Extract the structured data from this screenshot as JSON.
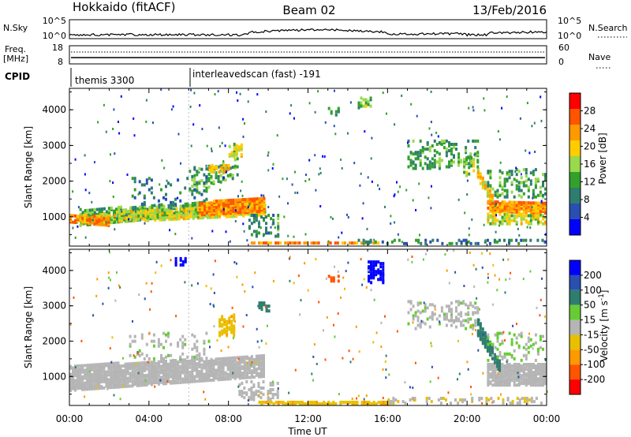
{
  "header": {
    "station": "Hokkaido (fitACF)",
    "beam": "Beam 02",
    "date": "13/Feb/2016"
  },
  "strip_labels": {
    "nsky": "N.Sky",
    "nsky_ticks": [
      "10^5",
      "10^0"
    ],
    "nsearch": "N.Search",
    "nsearch_ticks": [
      "10^5",
      "10^0"
    ],
    "freq_line1": "Freq.",
    "freq_line2": "[MHz]",
    "freq_ticks": [
      "18",
      "8"
    ],
    "nave": "Nave",
    "nave_ticks": [
      "60",
      "0"
    ],
    "cpid": "CPID",
    "cpid_entries": [
      {
        "time_h": 0.1,
        "label": "themis 3300"
      },
      {
        "time_h": 6.0,
        "label": "interleavedscan (fast) -191"
      }
    ]
  },
  "colors": {
    "power": [
      "#0000ff",
      "#2a4fb0",
      "#2e7d6e",
      "#33a02c",
      "#99d94c",
      "#ffcc00",
      "#ff9900",
      "#ff5500",
      "#ff0000"
    ],
    "velocity": [
      "#0000ff",
      "#2a4fb0",
      "#2e7d6e",
      "#66cc33",
      "#b5b5b5",
      "#e8c000",
      "#ff9900",
      "#ff5500",
      "#ff0000"
    ]
  },
  "chart_data": [
    {
      "type": "heatmap",
      "name": "power",
      "ylabel": "Slant Range [km]",
      "xlim": [
        0,
        24
      ],
      "ylim": [
        180,
        4600
      ],
      "yticks": [
        1000,
        2000,
        3000,
        4000
      ],
      "colorbar_label": "Power [dB]",
      "colorbar_ticks": [
        4,
        8,
        12,
        16,
        20,
        24,
        28
      ],
      "colorbar_range": [
        0,
        32
      ],
      "regions": [
        {
          "x": [
            0.5,
            9.8
          ],
          "y0": [
            800,
            1300
          ],
          "y1": [
            1250,
            1550
          ],
          "value": 14,
          "density": 0.75
        },
        {
          "x": [
            0.3,
            9.8
          ],
          "y0": [
            850,
            1100
          ],
          "y1": [
            1100,
            1450
          ],
          "value": 20,
          "density": 0.6
        },
        {
          "x": [
            6.5,
            9.8
          ],
          "y0": [
            1100,
            1200
          ],
          "y1": [
            1450,
            1600
          ],
          "value": 27,
          "density": 0.85
        },
        {
          "x": [
            0,
            2.0
          ],
          "y0": [
            900,
            800
          ],
          "y1": [
            1100,
            1050
          ],
          "value": 26,
          "density": 0.7
        },
        {
          "x": [
            9.0,
            15.5
          ],
          "y0": [
            220,
            220
          ],
          "y1": [
            330,
            330
          ],
          "value": 26,
          "density": 0.7
        },
        {
          "x": [
            20.5,
            21.3
          ],
          "y0": [
            2100,
            1300
          ],
          "y1": [
            2400,
            1600
          ],
          "value": 22,
          "density": 0.85
        },
        {
          "x": [
            21.0,
            24
          ],
          "y0": [
            1200,
            1150
          ],
          "y1": [
            1500,
            1450
          ],
          "value": 26,
          "density": 0.85
        },
        {
          "x": [
            21.0,
            24
          ],
          "y0": [
            850,
            850
          ],
          "y1": [
            1150,
            1100
          ],
          "value": 20,
          "density": 0.6
        },
        {
          "x": [
            6.0,
            8.5
          ],
          "y0": [
            1600,
            2200
          ],
          "y1": [
            2400,
            2700
          ],
          "value": 14,
          "density": 0.3
        },
        {
          "x": [
            7.0,
            8.0
          ],
          "y0": [
            2300,
            2300
          ],
          "y1": [
            2500,
            2500
          ],
          "value": 22,
          "density": 0.6
        },
        {
          "x": [
            8.0,
            8.7
          ],
          "y0": [
            2700,
            2750
          ],
          "y1": [
            3100,
            3100
          ],
          "value": 20,
          "density": 0.6
        },
        {
          "x": [
            9.0,
            10.5
          ],
          "y0": [
            500,
            500
          ],
          "y1": [
            1100,
            1100
          ],
          "value": 12,
          "density": 0.25
        },
        {
          "x": [
            14.5,
            24
          ],
          "y0": [
            250,
            250
          ],
          "y1": [
            400,
            400
          ],
          "value": 10,
          "density": 0.25
        },
        {
          "x": [
            17.0,
            20.5
          ],
          "y0": [
            2400,
            2400
          ],
          "y1": [
            3200,
            3200
          ],
          "value": 13,
          "density": 0.2
        },
        {
          "x": [
            19.8,
            20.4
          ],
          "y0": [
            2200,
            2200
          ],
          "y1": [
            2700,
            2700
          ],
          "value": 18,
          "density": 0.45
        },
        {
          "x": [
            13.0,
            13.5
          ],
          "y0": [
            3900,
            3900
          ],
          "y1": [
            4100,
            4100
          ],
          "value": 12,
          "density": 0.4
        },
        {
          "x": [
            14.5,
            15.2
          ],
          "y0": [
            4100,
            4100
          ],
          "y1": [
            4400,
            4400
          ],
          "value": 16,
          "density": 0.45
        },
        {
          "x": [
            3.0,
            7.0
          ],
          "y0": [
            1400,
            1400
          ],
          "y1": [
            2200,
            2200
          ],
          "value": 10,
          "density": 0.1
        },
        {
          "x": [
            21.0,
            24
          ],
          "y0": [
            1600,
            1600
          ],
          "y1": [
            2400,
            2400
          ],
          "value": 14,
          "density": 0.2
        }
      ]
    },
    {
      "type": "heatmap",
      "name": "velocity",
      "xlabel": "Time UT",
      "ylabel": "Slant Range [km]",
      "xlim": [
        0,
        24
      ],
      "xticks": [
        "00:00",
        "04:00",
        "08:00",
        "12:00",
        "16:00",
        "20:00",
        "00:00"
      ],
      "ylim": [
        180,
        4600
      ],
      "yticks": [
        1000,
        2000,
        3000,
        4000
      ],
      "colorbar_label": "Velocity [m s^-1]",
      "colorbar_ticks": [
        200,
        100,
        50,
        15,
        -15,
        -50,
        -100,
        -200
      ],
      "regions": [
        {
          "x": [
            0.0,
            9.8
          ],
          "y0": [
            650,
            1050
          ],
          "y1": [
            1350,
            1650
          ],
          "value": 0,
          "density": 0.8
        },
        {
          "x": [
            21.0,
            24
          ],
          "y0": [
            800,
            800
          ],
          "y1": [
            1400,
            1400
          ],
          "value": 0,
          "density": 0.8
        },
        {
          "x": [
            20.5,
            21.6
          ],
          "y0": [
            2200,
            1200
          ],
          "y1": [
            2700,
            1500
          ],
          "value": 70,
          "density": 0.8
        },
        {
          "x": [
            9.5,
            16.0
          ],
          "y0": [
            180,
            180
          ],
          "y1": [
            320,
            320
          ],
          "value": -40,
          "density": 0.7
        },
        {
          "x": [
            7.5,
            8.3
          ],
          "y0": [
            2200,
            2200
          ],
          "y1": [
            2800,
            2800
          ],
          "value": -40,
          "density": 0.5
        },
        {
          "x": [
            9.5,
            10.0
          ],
          "y0": [
            2900,
            2900
          ],
          "y1": [
            3150,
            3150
          ],
          "value": 70,
          "density": 0.5
        },
        {
          "x": [
            15.0,
            15.8
          ],
          "y0": [
            3700,
            3700
          ],
          "y1": [
            4300,
            4300
          ],
          "value": 220,
          "density": 0.6
        },
        {
          "x": [
            5.3,
            5.8
          ],
          "y0": [
            4200,
            4200
          ],
          "y1": [
            4400,
            4400
          ],
          "value": 220,
          "density": 0.5
        },
        {
          "x": [
            16.0,
            24
          ],
          "y0": [
            200,
            200
          ],
          "y1": [
            450,
            450
          ],
          "value": -10,
          "density": 0.25
        },
        {
          "x": [
            17.0,
            20.5
          ],
          "y0": [
            2400,
            2400
          ],
          "y1": [
            3200,
            3200
          ],
          "value": 5,
          "density": 0.2
        },
        {
          "x": [
            13.0,
            13.5
          ],
          "y0": [
            3700,
            3700
          ],
          "y1": [
            3900,
            3900
          ],
          "value": -120,
          "density": 0.4
        },
        {
          "x": [
            3.0,
            7.0
          ],
          "y0": [
            1500,
            1500
          ],
          "y1": [
            2300,
            2300
          ],
          "value": 5,
          "density": 0.12
        },
        {
          "x": [
            21.0,
            24
          ],
          "y0": [
            1500,
            1500
          ],
          "y1": [
            2300,
            2300
          ],
          "value": 20,
          "density": 0.15
        },
        {
          "x": [
            8.5,
            10.5
          ],
          "y0": [
            400,
            400
          ],
          "y1": [
            900,
            900
          ],
          "value": 0,
          "density": 0.3
        }
      ]
    }
  ]
}
